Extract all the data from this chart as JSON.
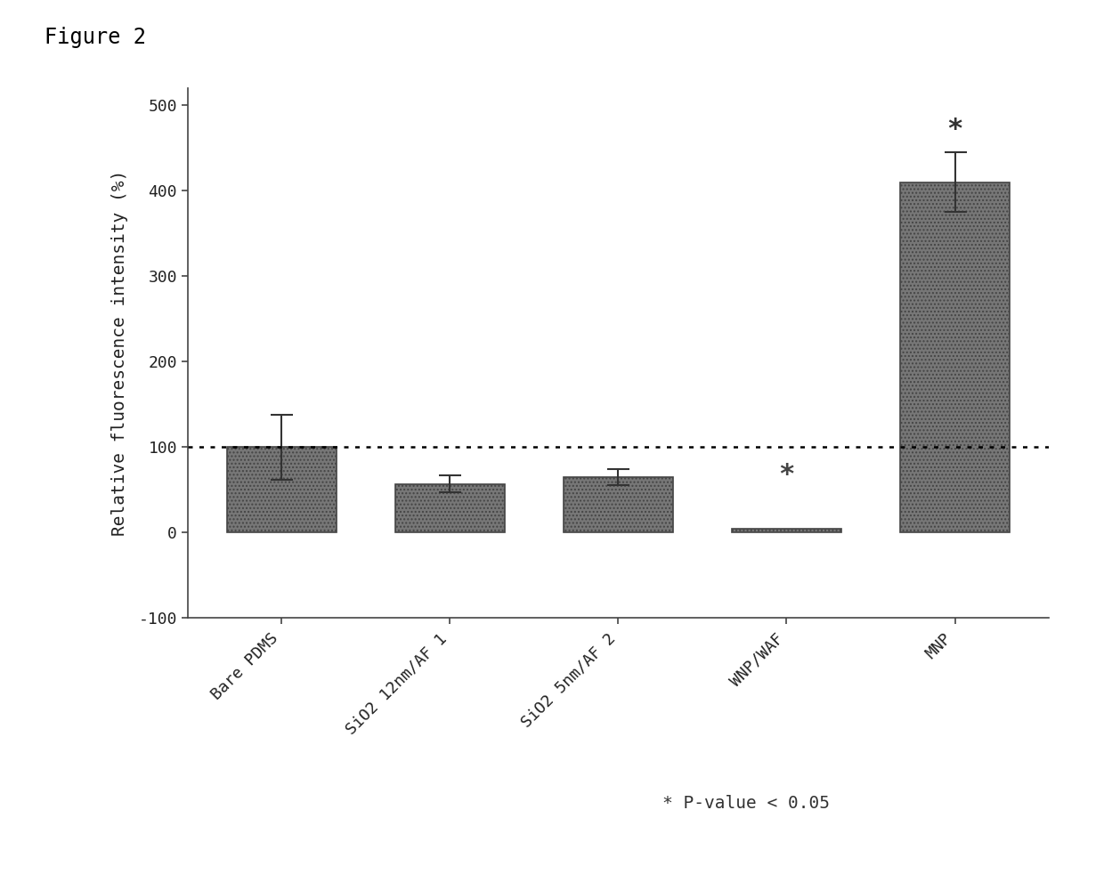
{
  "title": "Figure 2",
  "ylabel": "Relative fluorescence intensity (%)",
  "categories": [
    "Bare PDMS",
    "SiO2 12nm/AF 1",
    "SiO2 5nm/AF 2",
    "WNP/WAF",
    "MNP"
  ],
  "values": [
    100,
    57,
    65,
    5,
    410
  ],
  "errors": [
    38,
    10,
    9,
    0,
    35
  ],
  "bar_color": "#777777",
  "bar_edgecolor": "#444444",
  "ylim": [
    -100,
    520
  ],
  "yticks": [
    -100,
    0,
    100,
    200,
    300,
    400,
    500
  ],
  "dotted_line_y": 100,
  "note_text": "* P-value < 0.05",
  "background_color": "#ffffff",
  "plot_bg_color": "#f5f5f5",
  "fig_width": 12.4,
  "fig_height": 9.92,
  "bar_width": 0.65
}
